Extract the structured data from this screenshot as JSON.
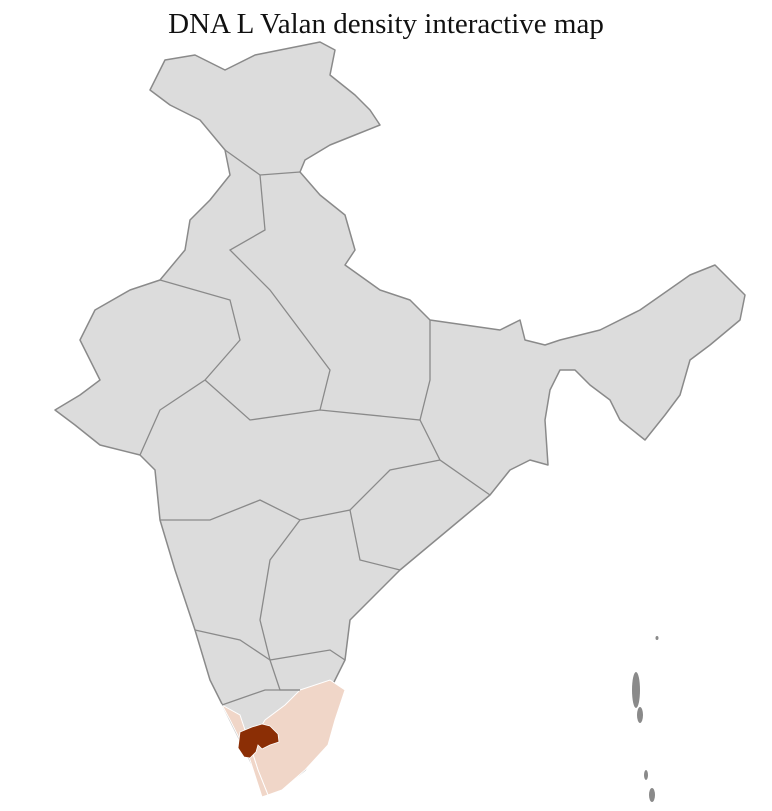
{
  "title": "DNA L Valan density interactive map",
  "colors": {
    "no_data": "#dcdcdc",
    "low_density": "#f0d6c8",
    "high_density": "#8b2e05",
    "state_border": "#8a8a8a",
    "district_border": "#ffffff"
  }
}
